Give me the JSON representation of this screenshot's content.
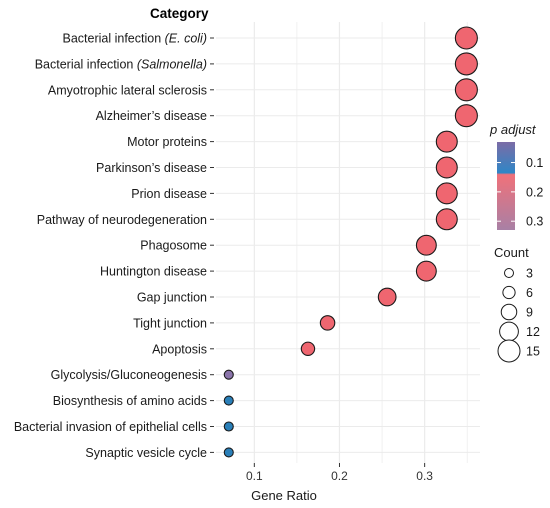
{
  "chart_data": {
    "type": "scatter",
    "title": "Category",
    "xlabel": "Gene Ratio",
    "ylabel": "",
    "xlim": [
      0.055,
      0.365
    ],
    "xticks": [
      0.1,
      0.2,
      0.3
    ],
    "grid": true,
    "legend_position": "right",
    "categories": [
      {
        "pre": "Bacterial infection ",
        "em": "(E. coli)",
        "post": ""
      },
      {
        "pre": "Bacterial infection ",
        "em": "(Salmonella)",
        "post": ""
      },
      {
        "pre": "Amyotrophic lateral sclerosis",
        "em": "",
        "post": ""
      },
      {
        "pre": "Alzheimer’s disease",
        "em": "",
        "post": ""
      },
      {
        "pre": "Motor proteins",
        "em": "",
        "post": ""
      },
      {
        "pre": "Parkinson’s disease",
        "em": "",
        "post": ""
      },
      {
        "pre": "Prion disease",
        "em": "",
        "post": ""
      },
      {
        "pre": "Pathway of neurodegeneration",
        "em": "",
        "post": ""
      },
      {
        "pre": "Phagosome",
        "em": "",
        "post": ""
      },
      {
        "pre": "Huntington disease",
        "em": "",
        "post": ""
      },
      {
        "pre": "Gap junction",
        "em": "",
        "post": ""
      },
      {
        "pre": "Tight junction",
        "em": "",
        "post": ""
      },
      {
        "pre": "Apoptosis",
        "em": "",
        "post": ""
      },
      {
        "pre": "Glycolysis/Gluconeogenesis",
        "em": "",
        "post": ""
      },
      {
        "pre": "Biosynthesis of amino acids",
        "em": "",
        "post": ""
      },
      {
        "pre": "Bacterial invasion of epithelial cells",
        "em": "",
        "post": ""
      },
      {
        "pre": "Synaptic vesicle cycle",
        "em": "",
        "post": ""
      }
    ],
    "gene_ratio": [
      0.349,
      0.349,
      0.349,
      0.349,
      0.326,
      0.326,
      0.326,
      0.326,
      0.302,
      0.302,
      0.256,
      0.186,
      0.163,
      0.07,
      0.07,
      0.07,
      0.07
    ],
    "count": [
      15,
      15,
      15,
      15,
      14,
      14,
      14,
      14,
      13,
      13,
      11,
      8,
      7,
      3,
      3,
      3,
      3
    ],
    "p_adjust": [
      0.17,
      0.17,
      0.17,
      0.17,
      0.17,
      0.17,
      0.17,
      0.17,
      0.17,
      0.17,
      0.17,
      0.17,
      0.17,
      0.31,
      0.12,
      0.12,
      0.12
    ],
    "colors": {
      "large_point_fill": "#ef6670",
      "small_point_fill": "#2a7fb8",
      "purple_point_fill": "#8a74aa",
      "point_stroke": "#1a1a1a",
      "grid": "#ebebeb",
      "colorbar_top": "#7b6ca6",
      "colorbar_mid_blue": "#2f86c6",
      "colorbar_mid_red": "#f0717a",
      "colorbar_bottom": "#a880a5"
    },
    "color_legend": {
      "title": "p adjust",
      "ticks": [
        {
          "label": "0.1",
          "value": 0.1
        },
        {
          "label": "0.2",
          "value": 0.2
        },
        {
          "label": "0.3",
          "value": 0.3
        }
      ]
    },
    "size_legend": {
      "title": "Count",
      "items": [
        {
          "label": "3",
          "value": 3
        },
        {
          "label": "6",
          "value": 6
        },
        {
          "label": "9",
          "value": 9
        },
        {
          "label": "12",
          "value": 12
        },
        {
          "label": "15",
          "value": 15
        }
      ]
    }
  }
}
